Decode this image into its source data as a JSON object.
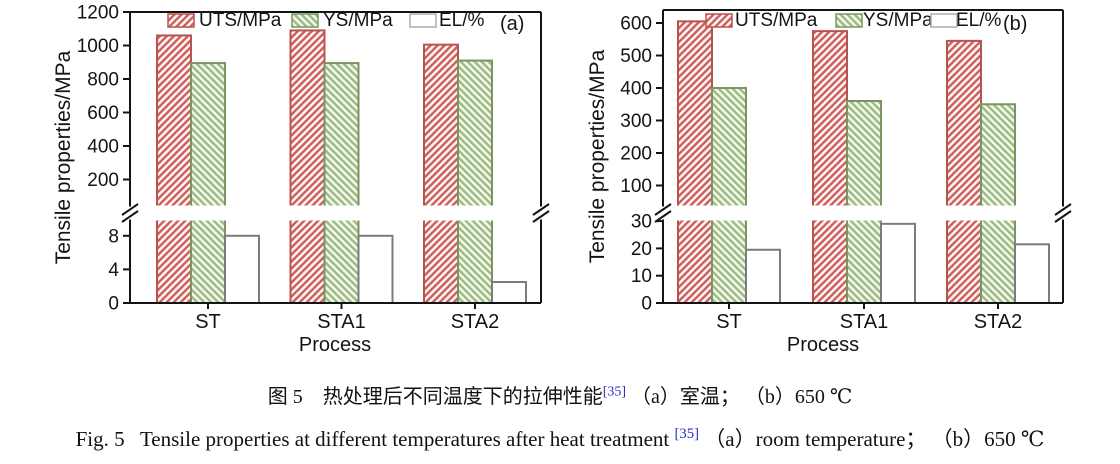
{
  "figure": {
    "caption_cn": {
      "prefix": "图 5　热处理后不同温度下的拉伸性能",
      "ref": "[35]",
      "suffix": " （a）室温； （b）650 ℃"
    },
    "caption_en": {
      "prefix": "Fig. 5   Tensile properties at different temperatures after heat treatment ",
      "ref": "[35]",
      "suffix": " （a）room temperature； （b）650 ℃"
    }
  },
  "colors": {
    "text": "#141414",
    "ref_blue": "#2b2fc0",
    "uts_border": "#b9534f",
    "uts_hatch": "#cb625e",
    "uts_bg": "#fdf4f3",
    "ys_border": "#7b9562",
    "ys_hatch": "#9dbc81",
    "ys_bg": "#f2f8ed",
    "el_border": "#7c7c7c",
    "el_legend_border": "#aeaeae",
    "el_bg": "#ffffff"
  },
  "chart_data": [
    {
      "type": "bar",
      "panel": "(a)",
      "xlabel": "Process",
      "ylabel": "Tensile properties/MPa",
      "categories": [
        "ST",
        "STA1",
        "STA2"
      ],
      "series": [
        {
          "name": "UTS/MPa",
          "style": "uts",
          "axis": "upper",
          "values": [
            1060,
            1090,
            1005
          ]
        },
        {
          "name": "YS/MPa",
          "style": "ys",
          "axis": "upper",
          "values": [
            895,
            895,
            910
          ]
        },
        {
          "name": "EL/%",
          "style": "el",
          "axis": "lower",
          "values": [
            8,
            8,
            2.5
          ]
        }
      ],
      "upper_axis": {
        "ticks": [
          200,
          400,
          600,
          800,
          1000,
          1200
        ],
        "max": 1200,
        "unit": "MPa"
      },
      "lower_axis": {
        "ticks": [
          0,
          4,
          8
        ],
        "unit": "%"
      },
      "broken_axis": true,
      "legend_position": "top-inside",
      "grid": false
    },
    {
      "type": "bar",
      "panel": "(b)",
      "xlabel": "Process",
      "ylabel": "Tensile properties/MPa",
      "categories": [
        "ST",
        "STA1",
        "STA2"
      ],
      "series": [
        {
          "name": "UTS/MPa",
          "style": "uts",
          "axis": "upper",
          "values": [
            605,
            575,
            545
          ]
        },
        {
          "name": "YS/MPa",
          "style": "ys",
          "axis": "upper",
          "values": [
            400,
            360,
            350
          ]
        },
        {
          "name": "EL/%",
          "style": "el",
          "axis": "lower",
          "values": [
            19.5,
            29,
            21.5
          ]
        }
      ],
      "upper_axis": {
        "ticks": [
          100,
          200,
          300,
          400,
          500,
          600
        ],
        "max": 600,
        "unit": "MPa"
      },
      "lower_axis": {
        "ticks": [
          0,
          10,
          20,
          30
        ],
        "unit": "%"
      },
      "broken_axis": true,
      "legend_position": "top-inside",
      "grid": false
    }
  ]
}
